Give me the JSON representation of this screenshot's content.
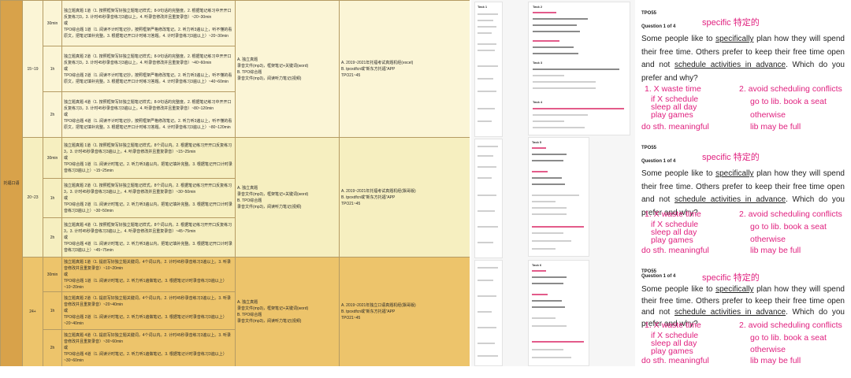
{
  "table": {
    "main_label": "托福口语",
    "bands": [
      {
        "range": "15~19",
        "rows": [
          {
            "time": "30min",
            "text": "独立题真题 1道（1. 按照框架写好独立题笔记样式；8-9句话的完整度。2. 根据笔记练习中开开口反复练习3，3. 计时45秒录音练习3遍以上。4. 听录音修改并且重复录音）~20~30min\n或\nTPO综合题 1道（1. 阅读不计时笔记抄，按照框架严格修改笔记。2. 听力听3遍以上，听不懂的看原文，把笔记填补完整。3. 根据笔记开口计时练习答题。4. 计时录音练习3遍以上）~20~30min"
          },
          {
            "time": "1h",
            "text": "独立题真题 2道（1. 按照框架写好独立题笔记样式；8-9句话的完整度。2. 根据笔记练习中开开口反复练习3，3. 计时45秒录音练习3遍以上。4. 听录音修改并且重复录音）~40~60min\n或\nTPO综合题 2道（1. 阅读不计时笔记抄，按照框架严格修改笔记。2. 听力听3遍以上，听不懂的看原文，把笔记填补完整。3. 根据笔记开口计时练习答题。4. 计时录音练习3遍以上）~40~60min"
          },
          {
            "time": "2h",
            "text": "独立题真题 4道（1. 按照框架写好独立题笔记样式；8-9句话的完整度。2. 根据笔记练习中开开口反复练习3，3. 计时45秒录音练习3遍以上。4. 听录音修改并且重复录音）~80~120min\n或\nTPO综合题 4道（1. 阅读不计时笔记抄，按照框架严格修改笔记。2. 听力听3遍以上，听不懂的看原文，把笔记填补完整。3. 根据笔记开口计时练习答题。4. 计时录音练习3遍以上）~80~120min"
          }
        ],
        "materials": "A. 独立真题\n录音文件(mp3)，框架笔记+关键词(word)\nB. TPO综合题\n录音文件(mp3)，阅读听力笔记(视频)",
        "sources": "A. 2019~2021年托福考试真题机经(excel)\nB. tpoxdfcn或“新东方托福”APP\n   TPO21~45"
      },
      {
        "range": "20~23",
        "rows": [
          {
            "time": "30min",
            "text": "独立题真题 1道（1. 按照框架写好独立题笔记样式，8个词以内。2. 根据笔记练习开开口反复练习3，3. 计时45秒录音练习3遍以上。4. 听录音修改并且重复录音）~15~25min\n或\nTPO综合题 1道（1. 阅读计时笔记。2. 听力听3遍以内，把笔记填补完整。3. 根据笔记开口计时录音练习3遍以上）~15~25min"
          },
          {
            "time": "1h",
            "text": "独立题真题 2道（1. 按照框架写好独立题笔记样式，8个词以内。2. 根据笔记练习开开口反复练习3，3. 计时45秒录音练习3遍以上。4. 听录音修改并且重复录音）~30~50min\n或\nTPO综合题 2道（1. 阅读计时笔记。2. 听力听3遍以内，把笔记填补完整。3. 根据笔记开口计时录音练习3遍以上）~30~50min"
          },
          {
            "time": "2h",
            "text": "独立题真题 4道（1. 按照框架写好独立题笔记样式，8个词以内。2. 根据笔记练习开开口反复练习3，3. 计时45秒录音练习3遍以上。4. 听录音修改并且重复录音）~45~75min\n或\nTPO综合题 4道（1. 阅读计时笔记。2. 听力听3遍以内，把笔记填补完整。3. 根据笔记开口计时录音练习3遍以上）~45~75min"
          }
        ],
        "materials": "A. 独立真题\n录音文件(mp3)，框架笔记+关键词(word)\nB. TPO综合题\n录音文件(mp3)，阅读听力笔记(视频)",
        "sources": "A. 2019~2021年托福考试真题机经(飘哥版)\nB. tpoxdfcn或“新东方托福”APP\n   TPO21~45"
      },
      {
        "range": "24+",
        "rows": [
          {
            "time": "30min",
            "text": "独立题真题 1道（1. 提前写好独立题关键词，4个词以内。2. 计时45秒录音练习3遍以上。3. 听录音修改并且重复录音）~10~20min\n或\nTPO综合题 1道（1. 阅读计时笔记。2. 听力听1遍做笔记。3. 根据笔记计时录音练习3遍以上）~10~20min"
          },
          {
            "time": "1h",
            "text": "独立题真题 2道（1. 提前写好独立题关键词，4个词以内。2. 计时45秒录音练习3遍以上。3. 听录音修改并且重复录音）~20~40min\n或\nTPO综合题 2道（1. 阅读计时笔记。2. 听力听1遍做笔记。3. 根据笔记计时录音练习3遍以上）~20~40min"
          },
          {
            "time": "2h",
            "text": "独立题真题 4道（1. 提前写好独立题关键词，4个词以内。2. 计时45秒录音练习3遍以上。3. 听录音修改并且重复录音）~30~60min\n或\nTPO综合题 4道（1. 阅读计时笔记。2. 听力听1遍做笔记。3. 根据笔记计时录音练习3遍以上）~30~60min"
          }
        ],
        "materials": "A. 独立真题\n录音文件(mp3)，框架笔记+关键词(word)\nB. TPO综合题\n录音文件(mp3)，阅读听力笔记(视频)",
        "sources": "A. 2019~2021年独立口语真题机经(飘哥版)\nB. tpoxdfcn或“新东方托福”APP\n   TPO21~45"
      }
    ]
  },
  "panels": [
    {
      "tpo": "TPO55",
      "qnum": "Question 1 of 4"
    },
    {
      "tpo": "TPO55",
      "qnum": "Question 1 of 4"
    },
    {
      "tpo": "TPO55",
      "qnum": "Question 1 of 4"
    }
  ],
  "panel_text": {
    "specific_note": "specific 特定的",
    "body_1": "Some people like to ",
    "body_specifically": "specifically",
    "body_2": " plan how they will spend their free time. Others prefer to keep their free time open and not ",
    "body_schedule": "schedule activities in advance",
    "body_3": ". Which do you prefer and why?",
    "opt1": "1. X waste time",
    "opt2": "2. avoid scheduling conflicts",
    "a1": "if X schedule",
    "a2": "sleep all day",
    "a3": "play games",
    "a4": "do sth. meaningful",
    "b1": "go to lib.  book a seat",
    "b2": "otherwise",
    "b3": "lib may be full"
  },
  "thumb_labels": [
    "Task 1",
    "Task 2",
    "Task 3",
    "Task 4",
    "Task 5",
    "Task 6"
  ]
}
